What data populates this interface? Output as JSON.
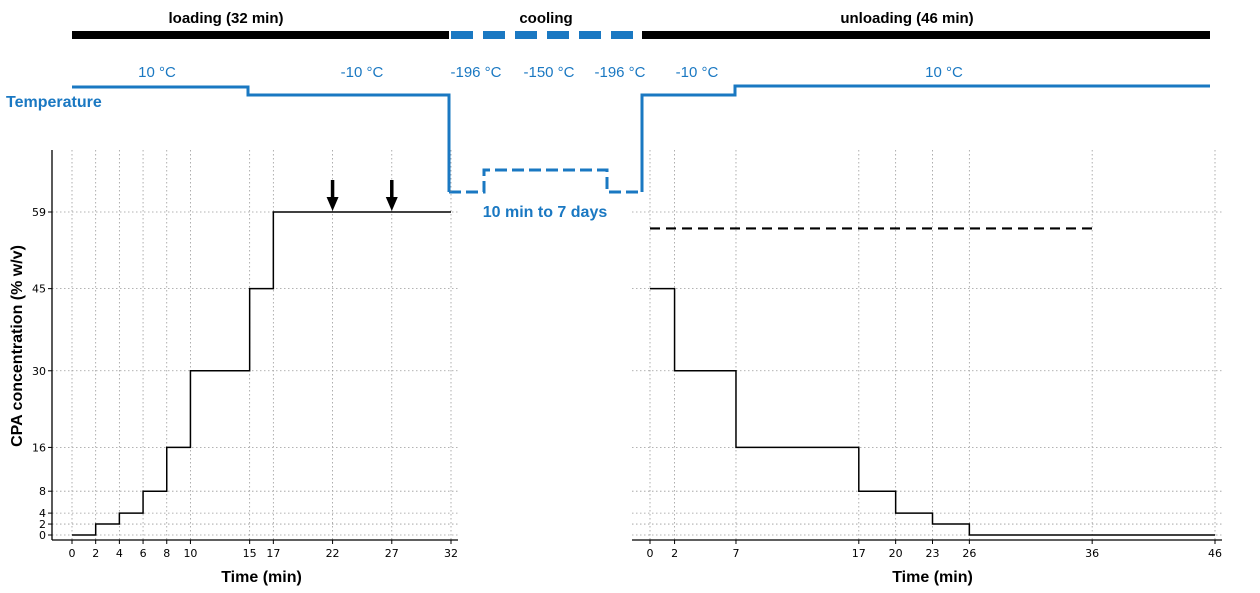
{
  "chart_data": {
    "type": "line",
    "phases": [
      {
        "label": "loading (32 min)"
      },
      {
        "label": "cooling"
      },
      {
        "label": "unloading (46 min)"
      }
    ],
    "temperature": {
      "title": "Temperature",
      "labels": [
        "10 °C",
        "-10 °C",
        "-196 °C",
        "-150 °C",
        "-196 °C",
        "-10 °C",
        "10 °C"
      ],
      "cooling_duration": "10 min to 7 days"
    },
    "ylabel": "CPA concentration (% w/v)",
    "y_ticks": [
      0,
      2,
      4,
      8,
      16,
      30,
      45,
      59
    ],
    "ylim": [
      0,
      59
    ],
    "grid": true,
    "panels": [
      {
        "name": "loading",
        "xlabel": "Time (min)",
        "xlim": [
          0,
          32
        ],
        "x_ticks": [
          0,
          2,
          4,
          6,
          8,
          10,
          15,
          17,
          22,
          27,
          32
        ],
        "steps": [
          {
            "start": 0,
            "end": 2,
            "value": 0
          },
          {
            "start": 2,
            "end": 4,
            "value": 2
          },
          {
            "start": 4,
            "end": 6,
            "value": 4
          },
          {
            "start": 6,
            "end": 8,
            "value": 8
          },
          {
            "start": 8,
            "end": 10,
            "value": 16
          },
          {
            "start": 10,
            "end": 15,
            "value": 30
          },
          {
            "start": 15,
            "end": 17,
            "value": 45
          },
          {
            "start": 17,
            "end": 32,
            "value": 59
          }
        ],
        "arrows_at": [
          22,
          27
        ]
      },
      {
        "name": "unloading",
        "xlabel": "Time (min)",
        "xlim": [
          0,
          46
        ],
        "x_ticks": [
          0,
          2,
          7,
          17,
          20,
          23,
          26,
          36,
          46
        ],
        "steps": [
          {
            "start": 0,
            "end": 2,
            "value": 45
          },
          {
            "start": 2,
            "end": 7,
            "value": 30
          },
          {
            "start": 7,
            "end": 17,
            "value": 16
          },
          {
            "start": 17,
            "end": 20,
            "value": 8
          },
          {
            "start": 20,
            "end": 23,
            "value": 4
          },
          {
            "start": 23,
            "end": 26,
            "value": 2
          },
          {
            "start": 26,
            "end": 46,
            "value": 0
          }
        ],
        "dashed_reference": {
          "start": 0,
          "end": 36,
          "value": 56
        }
      }
    ]
  }
}
